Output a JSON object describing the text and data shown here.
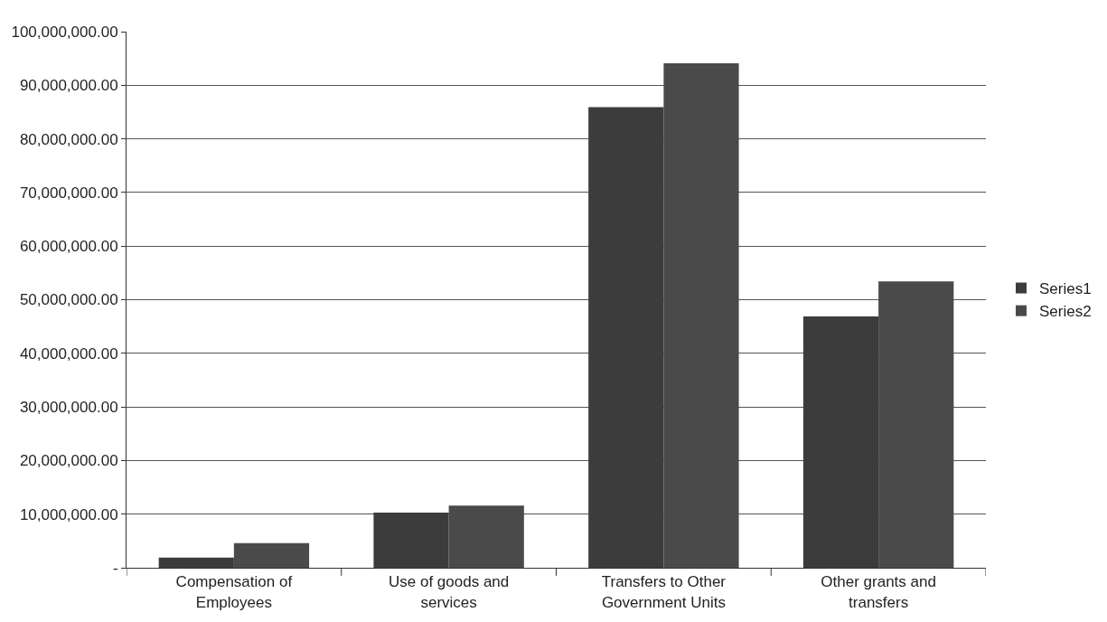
{
  "chart_data": {
    "type": "bar",
    "categories": [
      "Compensation of Employees",
      "Use of goods and services",
      "Transfers to Other Government Units",
      "Other grants and transfers"
    ],
    "series": [
      {
        "name": "Series1",
        "color": "#3c3c3c",
        "values": [
          1900000,
          10300000,
          85900000,
          46900000
        ]
      },
      {
        "name": "Series2",
        "color": "#4a4a4a",
        "values": [
          4600000,
          11600000,
          94100000,
          53400000
        ]
      }
    ],
    "ylim": [
      0,
      100000000
    ],
    "yticks": [
      {
        "value": 0,
        "label": "-"
      },
      {
        "value": 10000000,
        "label": "10,000,000.00"
      },
      {
        "value": 20000000,
        "label": "20,000,000.00"
      },
      {
        "value": 30000000,
        "label": "30,000,000.00"
      },
      {
        "value": 40000000,
        "label": "40,000,000.00"
      },
      {
        "value": 50000000,
        "label": "50,000,000.00"
      },
      {
        "value": 60000000,
        "label": "60,000,000.00"
      },
      {
        "value": 70000000,
        "label": "70,000,000.00"
      },
      {
        "value": 80000000,
        "label": "80,000,000.00"
      },
      {
        "value": 90000000,
        "label": "90,000,000.00"
      },
      {
        "value": 100000000,
        "label": "100,000,000.00"
      }
    ],
    "grid": "y",
    "legend": "right"
  }
}
